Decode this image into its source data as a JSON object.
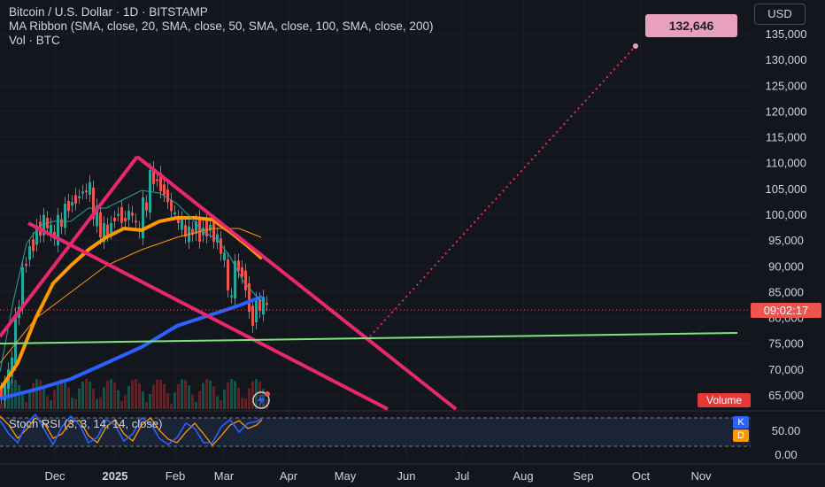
{
  "header": {
    "title": "Bitcoin / U.S. Dollar · 1D · BITSTAMP",
    "indicator_line": "MA Ribbon (SMA, close, 20, SMA, close, 50, SMA, close, 100, SMA, close, 200)",
    "volume_line": "Vol · BTC"
  },
  "currency_button": "USD",
  "target_label": "132,646",
  "countdown_label": "09:02:17",
  "volume_badge": "Volume",
  "stoch_rsi": {
    "label": "Stoch RSI (3, 3, 14, 14, close)",
    "k_badge": "K",
    "d_badge": "D",
    "ticks": [
      "50.00",
      "0.00"
    ]
  },
  "colors": {
    "background": "#14161d",
    "candle_up": "#26a69a",
    "candle_down": "#ef5350",
    "trendline": "#e8286e",
    "support_line": "#7ee37b",
    "ma_20": "#26a69a",
    "ma_50": "#ff9800",
    "ma_100": "#ff9800",
    "ma_200": "#2962ff",
    "k_line": "#2962ff",
    "d_line": "#ff9800"
  },
  "chart_data": {
    "type": "candlestick",
    "y_axis_ticks": [
      "135,000",
      "130,000",
      "125,000",
      "120,000",
      "115,000",
      "110,000",
      "105,000",
      "100,000",
      "95,000",
      "90,000",
      "85,000",
      "80,000",
      "75,000",
      "70,000",
      "65,000"
    ],
    "x_axis_ticks": [
      "Dec",
      "2025",
      "Feb",
      "Mar",
      "Apr",
      "May",
      "Jun",
      "Jul",
      "Aug",
      "Sep",
      "Oct",
      "Nov"
    ],
    "ylim": [
      60000,
      140000
    ],
    "projected_target": 132646
  }
}
